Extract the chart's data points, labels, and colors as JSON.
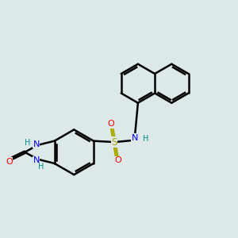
{
  "bg_color": "#dde8e8",
  "bond_color": "#000000",
  "bond_width": 1.8,
  "atom_colors": {
    "N": "#0000ff",
    "O": "#ff0000",
    "S": "#aaaa00",
    "H_color": "#008b8b",
    "C": "#000000"
  },
  "layout": {
    "xlim": [
      0,
      10
    ],
    "ylim": [
      0,
      10
    ]
  }
}
